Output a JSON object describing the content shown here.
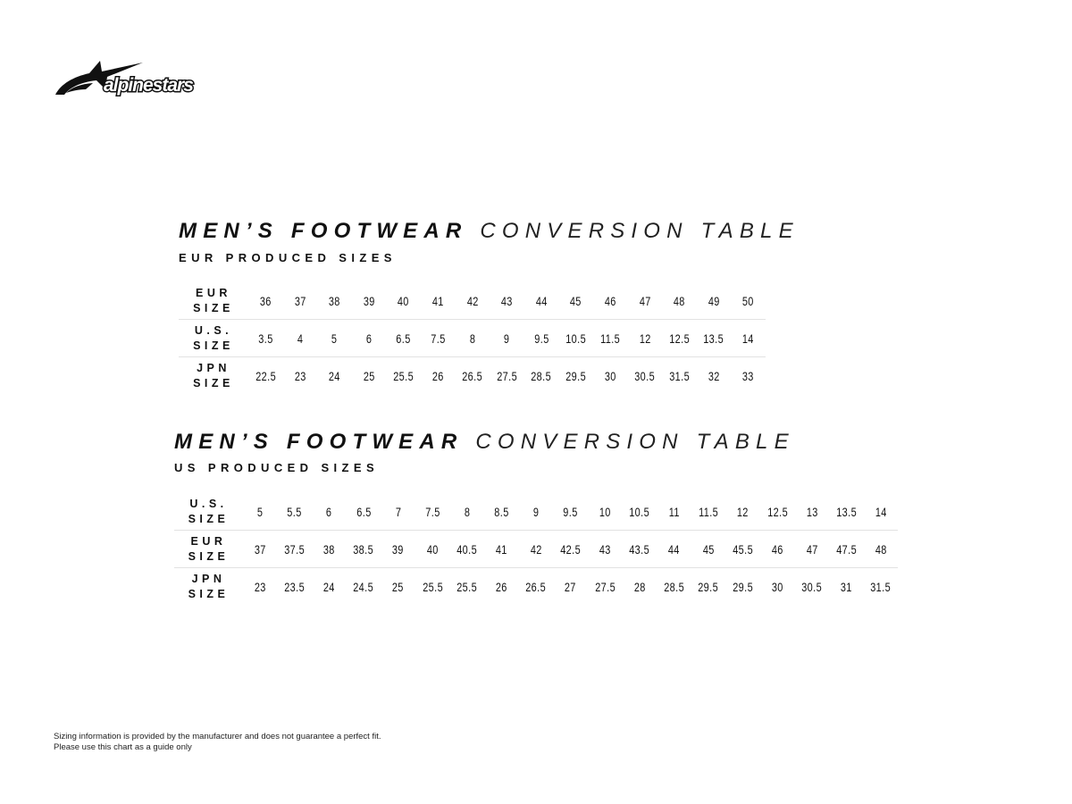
{
  "brand": {
    "name": "alpinestars",
    "logo_icon": "star-logo-icon"
  },
  "tables": [
    {
      "title_bold": "MEN’S FOOTWEAR",
      "title_light": "CONVERSION TABLE",
      "subtitle": "EUR PRODUCED SIZES",
      "rows": [
        {
          "label_top": "EUR",
          "label_bottom": "SIZE",
          "values": [
            "36",
            "37",
            "38",
            "39",
            "40",
            "41",
            "42",
            "43",
            "44",
            "45",
            "46",
            "47",
            "48",
            "49",
            "50"
          ]
        },
        {
          "label_top": "U.S.",
          "label_bottom": "SIZE",
          "values": [
            "3.5",
            "4",
            "5",
            "6",
            "6.5",
            "7.5",
            "8",
            "9",
            "9.5",
            "10.5",
            "11.5",
            "12",
            "12.5",
            "13.5",
            "14"
          ]
        },
        {
          "label_top": "JPN",
          "label_bottom": "SIZE",
          "values": [
            "22.5",
            "23",
            "24",
            "25",
            "25.5",
            "26",
            "26.5",
            "27.5",
            "28.5",
            "29.5",
            "30",
            "30.5",
            "31.5",
            "32",
            "33"
          ]
        }
      ]
    },
    {
      "title_bold": "MEN’S FOOTWEAR",
      "title_light": "CONVERSION TABLE",
      "subtitle": "US PRODUCED SIZES",
      "rows": [
        {
          "label_top": "U.S.",
          "label_bottom": "SIZE",
          "values": [
            "5",
            "5.5",
            "6",
            "6.5",
            "7",
            "7.5",
            "8",
            "8.5",
            "9",
            "9.5",
            "10",
            "10.5",
            "11",
            "11.5",
            "12",
            "12.5",
            "13",
            "13.5",
            "14"
          ]
        },
        {
          "label_top": "EUR",
          "label_bottom": "SIZE",
          "values": [
            "37",
            "37.5",
            "38",
            "38.5",
            "39",
            "40",
            "40.5",
            "41",
            "42",
            "42.5",
            "43",
            "43.5",
            "44",
            "45",
            "45.5",
            "46",
            "47",
            "47.5",
            "48"
          ]
        },
        {
          "label_top": "JPN",
          "label_bottom": "SIZE",
          "values": [
            "23",
            "23.5",
            "24",
            "24.5",
            "25",
            "25.5",
            "25.5",
            "26",
            "26.5",
            "27",
            "27.5",
            "28",
            "28.5",
            "29.5",
            "29.5",
            "30",
            "30.5",
            "31",
            "31.5"
          ]
        }
      ]
    }
  ],
  "footer": {
    "line1": "Sizing information is provided by the manufacturer and does not guarantee a perfect fit.",
    "line2": "Please use this chart as a guide only"
  }
}
